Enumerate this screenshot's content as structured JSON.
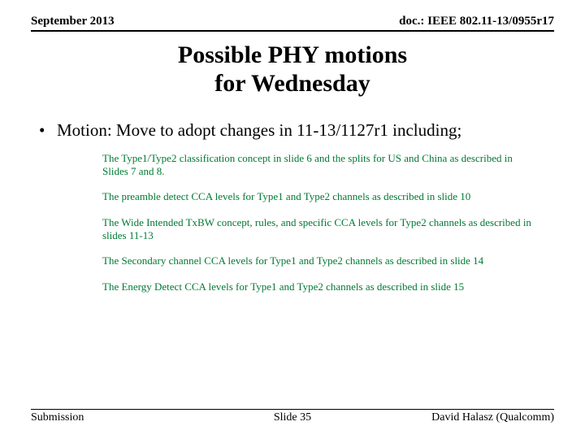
{
  "header": {
    "left": "September 2013",
    "right": "doc.: IEEE 802.11-13/0955r17"
  },
  "title": {
    "line1": "Possible PHY motions",
    "line2": "for Wednesday"
  },
  "motion": {
    "bullet": "•",
    "text": "Motion: Move to adopt changes in 11-13/1127r1 including;"
  },
  "subitems": [
    "The Type1/Type2 classification concept in slide 6 and the splits for US and China as described in Slides 7 and 8.",
    "The preamble detect CCA levels for Type1 and Type2 channels as described in slide 10",
    "The Wide Intended TxBW concept, rules, and specific CCA levels for Type2 channels as described in slides 11-13",
    "The Secondary channel CCA levels for Type1 and Type2 channels as described in slide 14",
    "The Energy Detect CCA levels for Type1 and Type2 channels as described in slide 15"
  ],
  "footer": {
    "left": "Submission",
    "center": "Slide 35",
    "right": "David Halasz (Qualcomm)"
  },
  "colors": {
    "text": "#000000",
    "sub_text": "#007a33",
    "background": "#ffffff",
    "rule": "#000000"
  }
}
